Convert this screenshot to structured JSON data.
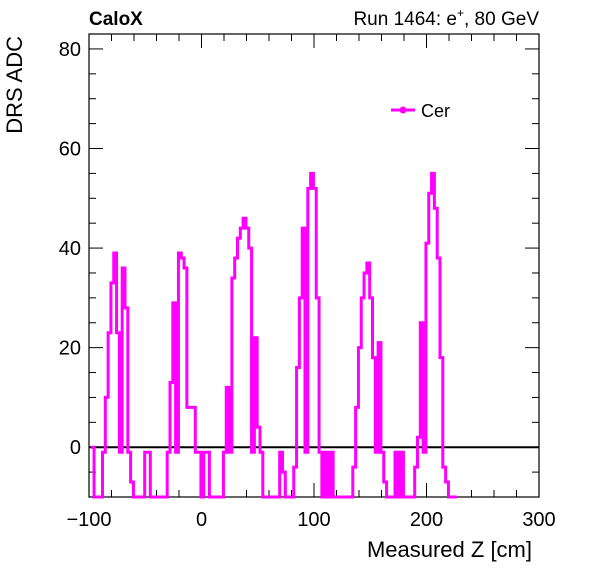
{
  "header": {
    "left": "CaloX",
    "right": "Run 1464: e",
    "right_sup": "+",
    "right_end": ", 80 GeV"
  },
  "chart_data": {
    "type": "line",
    "step": true,
    "xlabel": "Measured Z [cm]",
    "ylabel": "DRS ADC",
    "xlim": [
      -100,
      300
    ],
    "ylim": [
      -10,
      83
    ],
    "xticks": [
      -100,
      0,
      100,
      200,
      300
    ],
    "xtick_labels": [
      "−100",
      "0",
      "100",
      "200",
      "300"
    ],
    "yticks": [
      0,
      20,
      40,
      60,
      80
    ],
    "ytick_labels": [
      "0",
      "20",
      "40",
      "60",
      "80"
    ],
    "zero_line": true,
    "legend_position": "top-right",
    "series": [
      {
        "name": "Cer",
        "color": "#ff00ff",
        "bin_width": 2.5,
        "x_start": -98,
        "values": [
          0,
          -10,
          -10,
          -10,
          -1,
          10,
          23,
          33,
          39,
          23,
          -1,
          36,
          28,
          -1,
          -7,
          -10,
          -10,
          -10,
          -10,
          -1,
          -1,
          -10,
          -10,
          -10,
          -10,
          -10,
          -10,
          -1,
          13,
          29,
          -1,
          39,
          38,
          36,
          8,
          8,
          8,
          -1,
          -1,
          -10,
          -1,
          -1,
          -10,
          -10,
          -10,
          -10,
          -10,
          -1,
          12,
          -1,
          34,
          38,
          42,
          44,
          46,
          44,
          40,
          -1,
          22,
          4,
          -1,
          -10,
          -10,
          -10,
          -10,
          -10,
          -10,
          -1,
          -5,
          -10,
          -10,
          -10,
          -4,
          16,
          30,
          44,
          -1,
          52,
          55,
          52,
          30,
          -1,
          -10,
          -1,
          -10,
          -1,
          -10,
          -10,
          -10,
          -10,
          -10,
          -10,
          -10,
          -4,
          8,
          20,
          30,
          35,
          37,
          30,
          18,
          -1,
          21,
          -1,
          -7,
          -10,
          -10,
          -10,
          -1,
          -10,
          -1,
          -10,
          -10,
          -10,
          -10,
          -4,
          2,
          25,
          -1,
          41,
          51,
          55,
          48,
          38,
          18,
          -4,
          -7,
          -10,
          -10,
          -10
        ]
      }
    ]
  }
}
